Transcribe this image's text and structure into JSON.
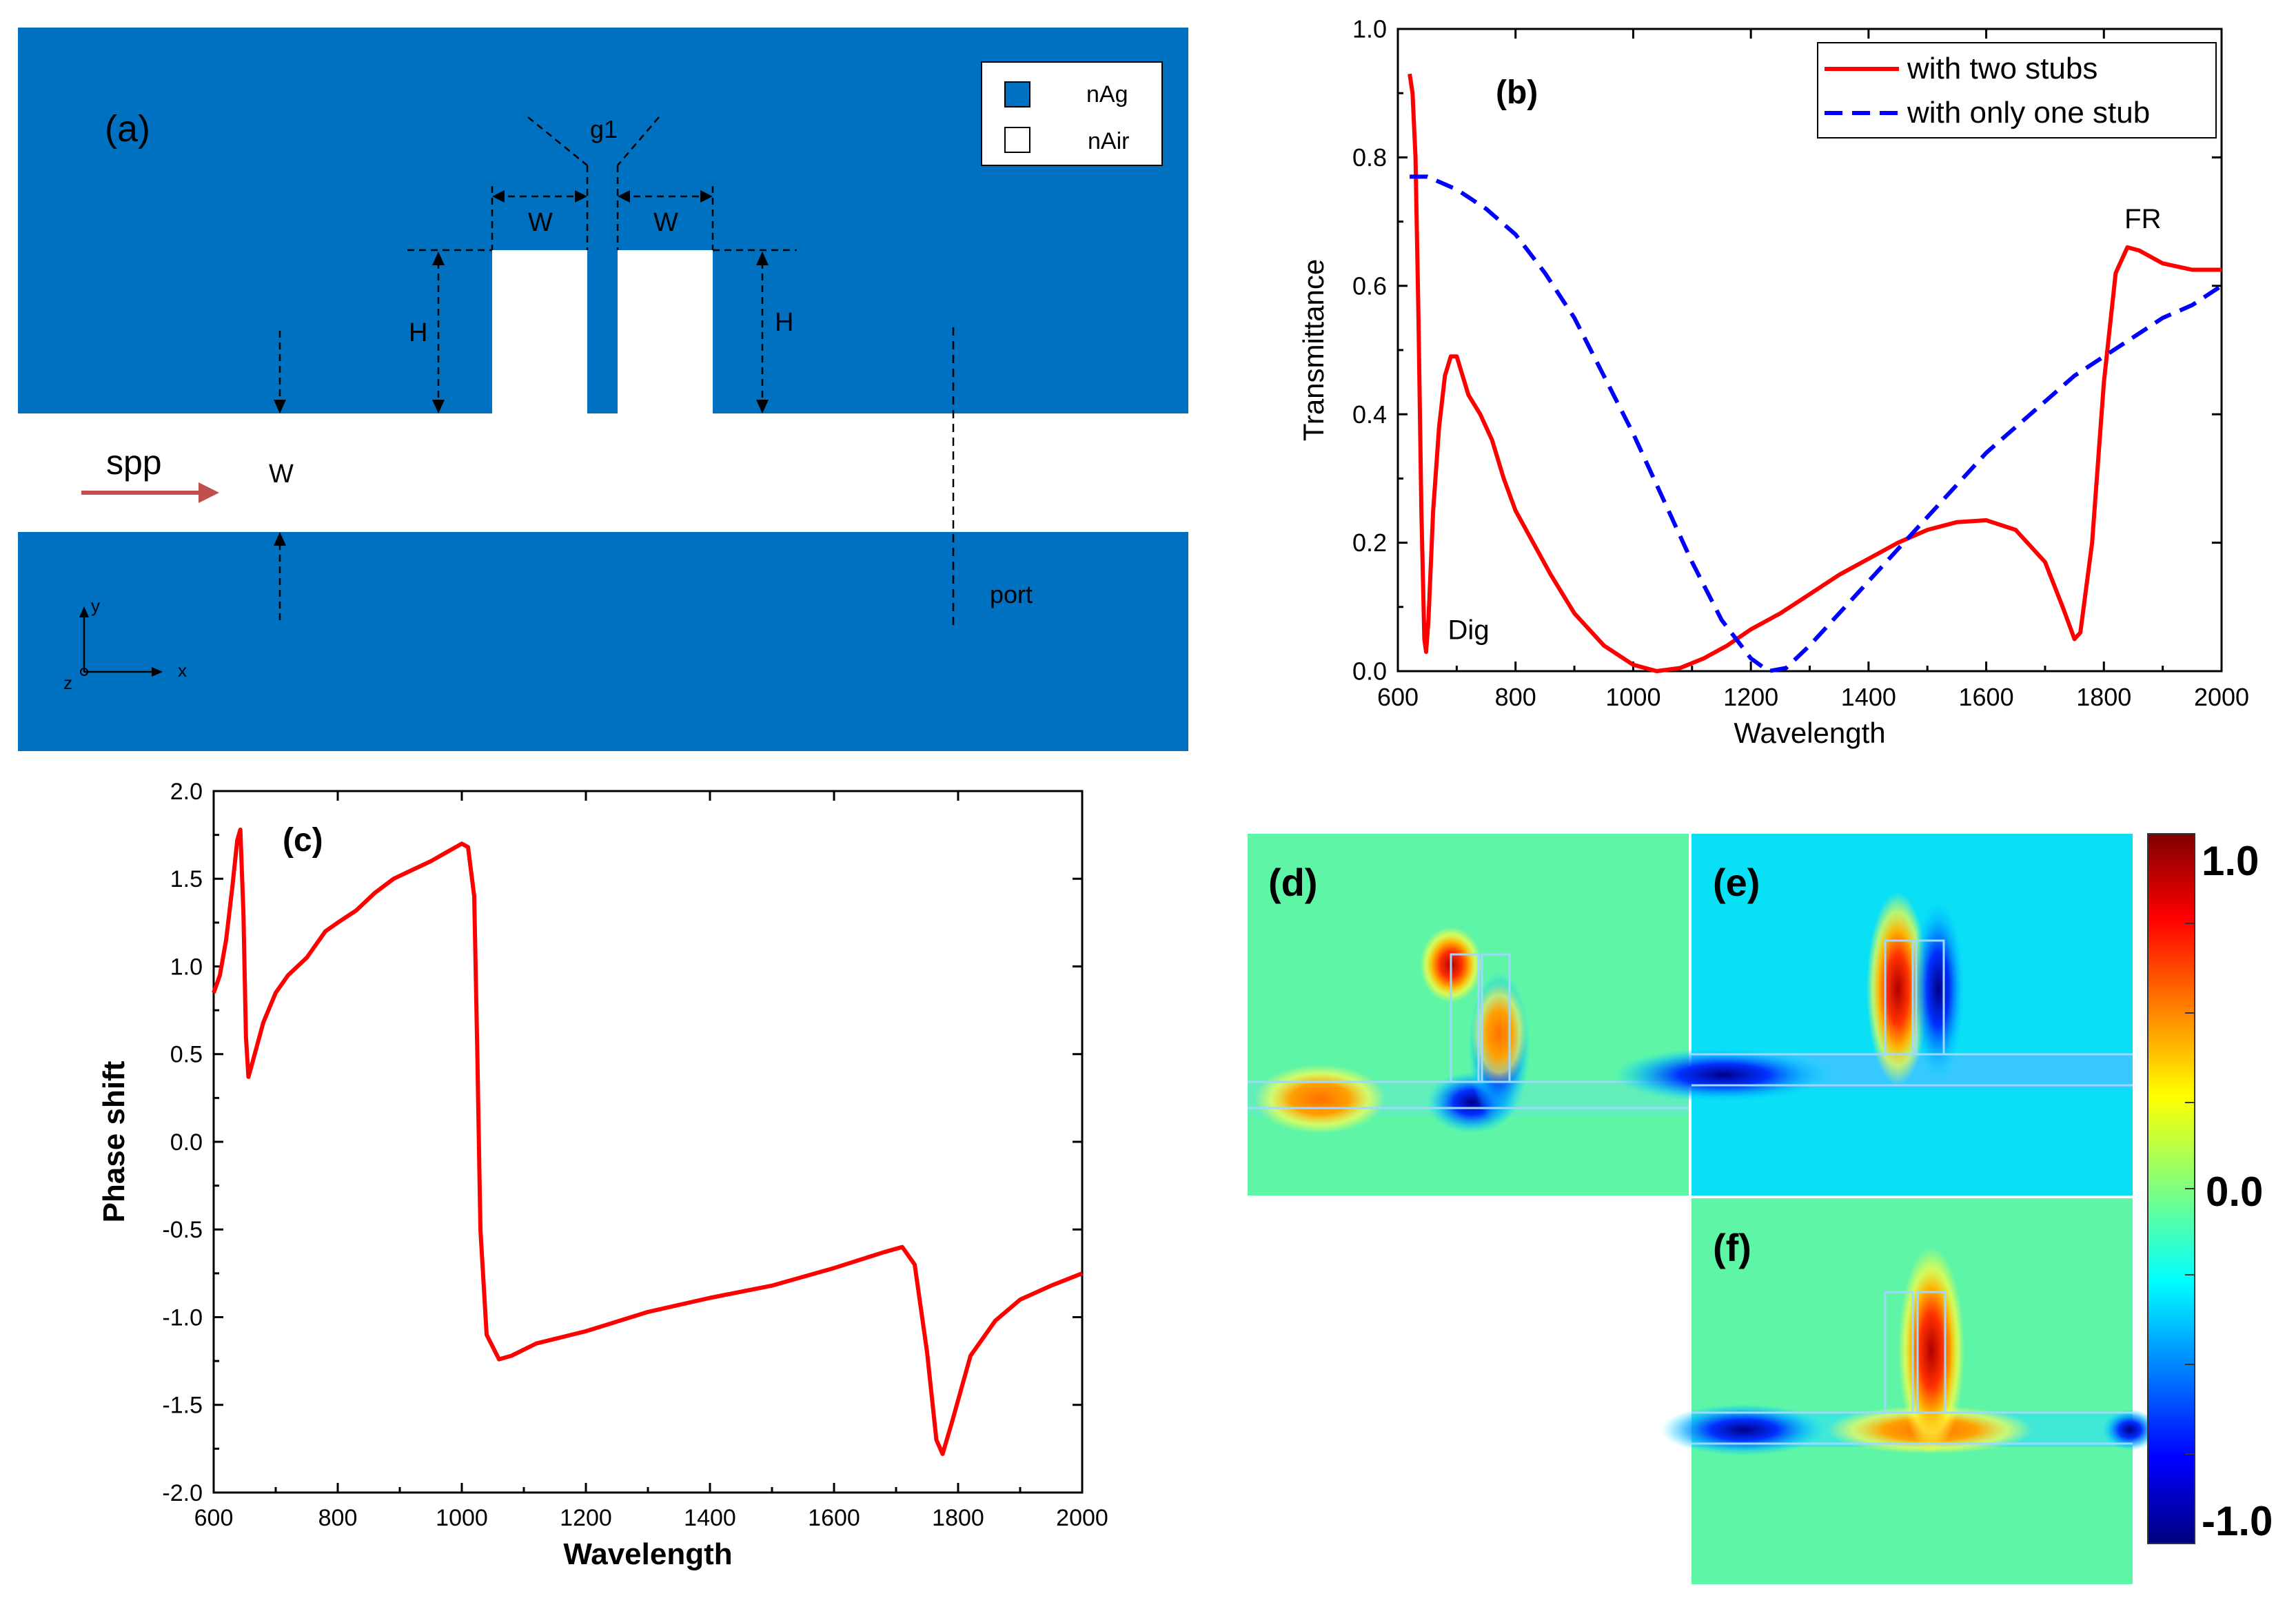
{
  "panel_a": {
    "label": "(a)",
    "legend": {
      "ag_label": "nAg",
      "air_label": "nAir",
      "ag_color": "#0070c0",
      "air_color": "#ffffff"
    },
    "dim_g1": "g1",
    "dim_w": "W",
    "dim_h": "H",
    "spp_label": "spp",
    "waveguide_w": "W",
    "port_label": "port",
    "axis_x": "x",
    "axis_y": "y",
    "axis_z": "z"
  },
  "chart_data": [
    {
      "panel": "(b)",
      "type": "line",
      "title": "",
      "xlabel": "Wavelength",
      "ylabel": "Transmittance",
      "xlim": [
        600,
        2000
      ],
      "ylim": [
        0.0,
        1.0
      ],
      "xticks": [
        "600",
        "800",
        "1000",
        "1200",
        "1400",
        "1600",
        "1800",
        "2000"
      ],
      "yticks": [
        "0.0",
        "0.2",
        "0.4",
        "0.6",
        "0.8",
        "1.0"
      ],
      "legend_position": "top-right",
      "annotations": {
        "dig": "Dig",
        "fr": "FR"
      },
      "series": [
        {
          "name": "with two stubs",
          "color": "#ff0000",
          "style": "solid",
          "points": [
            [
              620,
              0.93
            ],
            [
              625,
              0.9
            ],
            [
              630,
              0.8
            ],
            [
              635,
              0.55
            ],
            [
              640,
              0.25
            ],
            [
              645,
              0.05
            ],
            [
              648,
              0.03
            ],
            [
              652,
              0.08
            ],
            [
              660,
              0.25
            ],
            [
              670,
              0.38
            ],
            [
              680,
              0.46
            ],
            [
              690,
              0.49
            ],
            [
              700,
              0.49
            ],
            [
              710,
              0.46
            ],
            [
              720,
              0.43
            ],
            [
              740,
              0.4
            ],
            [
              760,
              0.36
            ],
            [
              780,
              0.3
            ],
            [
              800,
              0.25
            ],
            [
              830,
              0.2
            ],
            [
              860,
              0.15
            ],
            [
              900,
              0.09
            ],
            [
              950,
              0.04
            ],
            [
              1000,
              0.01
            ],
            [
              1040,
              0.0
            ],
            [
              1080,
              0.005
            ],
            [
              1120,
              0.02
            ],
            [
              1160,
              0.04
            ],
            [
              1200,
              0.065
            ],
            [
              1250,
              0.09
            ],
            [
              1300,
              0.12
            ],
            [
              1350,
              0.15
            ],
            [
              1400,
              0.175
            ],
            [
              1450,
              0.2
            ],
            [
              1500,
              0.22
            ],
            [
              1550,
              0.232
            ],
            [
              1600,
              0.235
            ],
            [
              1650,
              0.22
            ],
            [
              1700,
              0.17
            ],
            [
              1730,
              0.1
            ],
            [
              1750,
              0.05
            ],
            [
              1760,
              0.06
            ],
            [
              1780,
              0.2
            ],
            [
              1800,
              0.45
            ],
            [
              1820,
              0.62
            ],
            [
              1840,
              0.66
            ],
            [
              1860,
              0.655
            ],
            [
              1900,
              0.635
            ],
            [
              1950,
              0.625
            ],
            [
              2000,
              0.625
            ]
          ]
        },
        {
          "name": "with only one stub",
          "color": "#0000ff",
          "style": "dashed",
          "points": [
            [
              620,
              0.77
            ],
            [
              650,
              0.77
            ],
            [
              700,
              0.75
            ],
            [
              750,
              0.72
            ],
            [
              800,
              0.68
            ],
            [
              850,
              0.62
            ],
            [
              900,
              0.55
            ],
            [
              950,
              0.46
            ],
            [
              1000,
              0.37
            ],
            [
              1050,
              0.27
            ],
            [
              1100,
              0.17
            ],
            [
              1150,
              0.08
            ],
            [
              1200,
              0.02
            ],
            [
              1230,
              0.0
            ],
            [
              1260,
              0.005
            ],
            [
              1300,
              0.04
            ],
            [
              1350,
              0.09
            ],
            [
              1400,
              0.14
            ],
            [
              1450,
              0.19
            ],
            [
              1500,
              0.24
            ],
            [
              1550,
              0.29
            ],
            [
              1600,
              0.34
            ],
            [
              1650,
              0.38
            ],
            [
              1700,
              0.42
            ],
            [
              1750,
              0.46
            ],
            [
              1800,
              0.49
            ],
            [
              1850,
              0.52
            ],
            [
              1900,
              0.55
            ],
            [
              1950,
              0.57
            ],
            [
              2000,
              0.6
            ]
          ]
        }
      ]
    },
    {
      "panel": "(c)",
      "type": "line",
      "title": "",
      "xlabel": "Wavelength",
      "ylabel": "Phase shift",
      "xlim": [
        600,
        2000
      ],
      "ylim": [
        -2.0,
        2.0
      ],
      "xticks": [
        "600",
        "800",
        "1000",
        "1200",
        "1400",
        "1600",
        "1800",
        "2000"
      ],
      "yticks": [
        "-2.0",
        "-1.5",
        "-1.0",
        "-0.5",
        "0.0",
        "0.5",
        "1.0",
        "1.5",
        "2.0"
      ],
      "series": [
        {
          "name": "",
          "color": "#ff0000",
          "style": "solid",
          "points": [
            [
              600,
              0.85
            ],
            [
              610,
              0.95
            ],
            [
              620,
              1.15
            ],
            [
              630,
              1.45
            ],
            [
              638,
              1.72
            ],
            [
              643,
              1.78
            ],
            [
              648,
              1.3
            ],
            [
              652,
              0.6
            ],
            [
              656,
              0.37
            ],
            [
              660,
              0.42
            ],
            [
              680,
              0.68
            ],
            [
              700,
              0.85
            ],
            [
              720,
              0.95
            ],
            [
              750,
              1.05
            ],
            [
              780,
              1.2
            ],
            [
              800,
              1.25
            ],
            [
              830,
              1.32
            ],
            [
              860,
              1.42
            ],
            [
              890,
              1.5
            ],
            [
              920,
              1.55
            ],
            [
              950,
              1.6
            ],
            [
              980,
              1.66
            ],
            [
              1000,
              1.7
            ],
            [
              1010,
              1.68
            ],
            [
              1020,
              1.4
            ],
            [
              1025,
              0.5
            ],
            [
              1030,
              -0.5
            ],
            [
              1040,
              -1.1
            ],
            [
              1060,
              -1.24
            ],
            [
              1080,
              -1.22
            ],
            [
              1120,
              -1.15
            ],
            [
              1200,
              -1.08
            ],
            [
              1300,
              -0.97
            ],
            [
              1400,
              -0.89
            ],
            [
              1500,
              -0.82
            ],
            [
              1600,
              -0.72
            ],
            [
              1680,
              -0.63
            ],
            [
              1710,
              -0.6
            ],
            [
              1730,
              -0.7
            ],
            [
              1750,
              -1.2
            ],
            [
              1765,
              -1.7
            ],
            [
              1775,
              -1.78
            ],
            [
              1790,
              -1.6
            ],
            [
              1820,
              -1.22
            ],
            [
              1860,
              -1.02
            ],
            [
              1900,
              -0.9
            ],
            [
              1950,
              -0.82
            ],
            [
              2000,
              -0.75
            ]
          ]
        }
      ]
    }
  ],
  "field_maps": {
    "labels": [
      "(d)",
      "(e)",
      "(f)"
    ],
    "colorbar": {
      "max": "1.0",
      "mid": "0.0",
      "min": "-1.0"
    }
  }
}
